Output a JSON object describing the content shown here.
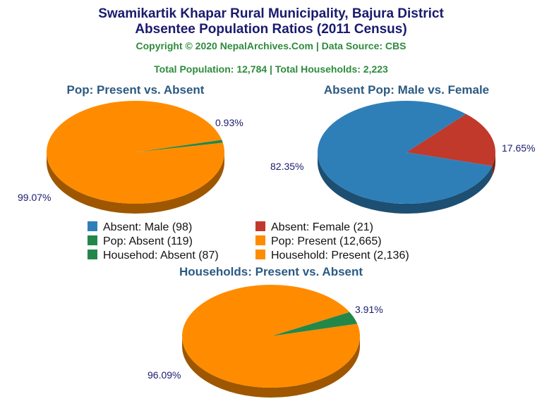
{
  "header": {
    "title_line1": "Swamikartik Khapar Rural Municipality, Bajura District",
    "title_line2": "Absentee Population Ratios (2011 Census)",
    "copyright": "Copyright © 2020 NepalArchives.Com | Data Source: CBS",
    "totals": "Total Population: 12,784 | Total Households: 2,223"
  },
  "legend": [
    {
      "label": "Absent: Male (98)",
      "color": "#2e7fb8"
    },
    {
      "label": "Absent: Female (21)",
      "color": "#c0392b"
    },
    {
      "label": "Pop: Absent (119)",
      "color": "#24874a"
    },
    {
      "label": "Pop: Present (12,665)",
      "color": "#ff8c00"
    },
    {
      "label": "Househod: Absent (87)",
      "color": "#24874a"
    },
    {
      "label": "Household: Present (2,136)",
      "color": "#ff8c00"
    }
  ],
  "chart_data": [
    {
      "type": "pie",
      "title": "Pop: Present vs. Absent",
      "slices": [
        {
          "name": "Pop: Absent",
          "value": 0.93,
          "label": "0.93%",
          "color": "#24874a"
        },
        {
          "name": "Pop: Present",
          "value": 99.07,
          "label": "99.07%",
          "color": "#ff8c00"
        }
      ]
    },
    {
      "type": "pie",
      "title": "Absent Pop: Male vs. Female",
      "slices": [
        {
          "name": "Absent: Female",
          "value": 17.65,
          "label": "17.65%",
          "color": "#c0392b"
        },
        {
          "name": "Absent: Male",
          "value": 82.35,
          "label": "82.35%",
          "color": "#2e7fb8"
        }
      ]
    },
    {
      "type": "pie",
      "title": "Households: Present vs. Absent",
      "slices": [
        {
          "name": "Househod: Absent",
          "value": 3.91,
          "label": "3.91%",
          "color": "#24874a"
        },
        {
          "name": "Household: Present",
          "value": 96.09,
          "label": "96.09%",
          "color": "#ff8c00"
        }
      ]
    }
  ]
}
